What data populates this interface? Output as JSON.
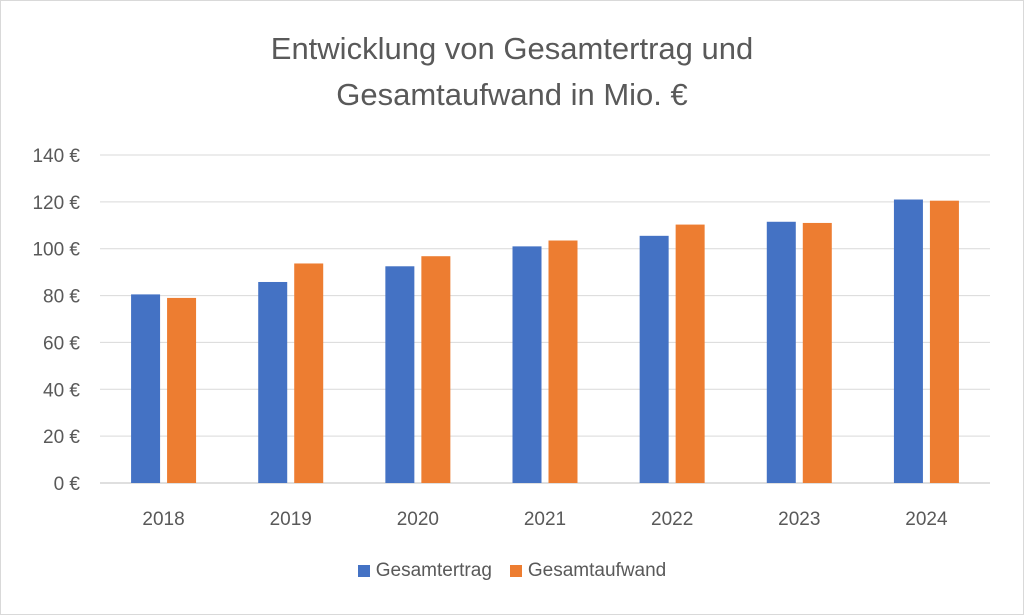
{
  "chart_data": {
    "type": "bar",
    "title_lines": [
      "Entwicklung von Gesamtertrag und",
      "Gesamtaufwand in Mio. €"
    ],
    "categories": [
      "2018",
      "2019",
      "2020",
      "2021",
      "2022",
      "2023",
      "2024"
    ],
    "series": [
      {
        "name": "Gesamtertrag",
        "color": "#4472C4",
        "values": [
          80.5,
          85.8,
          92.5,
          101.0,
          105.5,
          111.5,
          121.0
        ]
      },
      {
        "name": "Gesamtaufwand",
        "color": "#ED7D31",
        "values": [
          79.0,
          93.7,
          96.8,
          103.5,
          110.3,
          111.0,
          120.5
        ]
      }
    ],
    "ylim": [
      0,
      140
    ],
    "yticks": [
      0,
      20,
      40,
      60,
      80,
      100,
      120,
      140
    ],
    "ytick_labels": [
      "0 €",
      "20 €",
      "40 €",
      "60 €",
      "80 €",
      "100 €",
      "120 €",
      "140 €"
    ],
    "grid": true,
    "legend_position": "bottom"
  }
}
